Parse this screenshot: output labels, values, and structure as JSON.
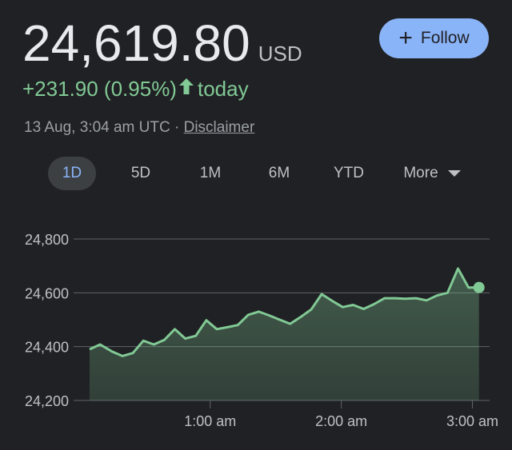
{
  "quote": {
    "price": "24,619.80",
    "currency": "USD",
    "change": "+231.90 (0.95%)",
    "change_period": "today",
    "timestamp": "13 Aug, 3:04 am UTC",
    "separator": "·",
    "disclaimer_label": "Disclaimer",
    "up_color": "#81c995"
  },
  "follow_button": {
    "label": "Follow",
    "icon": "plus-icon"
  },
  "range_tabs": [
    {
      "label": "1D",
      "active": true
    },
    {
      "label": "5D",
      "active": false
    },
    {
      "label": "1M",
      "active": false
    },
    {
      "label": "6M",
      "active": false
    },
    {
      "label": "YTD",
      "active": false
    },
    {
      "label": "More",
      "active": false,
      "icon": "caret-down-icon"
    }
  ],
  "chart_data": {
    "type": "area",
    "title": "",
    "xlabel": "",
    "ylabel": "",
    "y_ticks": [
      "24,800",
      "24,600",
      "24,400",
      "24,200"
    ],
    "y_tick_values": [
      24800,
      24600,
      24400,
      24200
    ],
    "x_ticks": [
      "1:00 am",
      "2:00 am",
      "3:00 am"
    ],
    "x_tick_values": [
      1.0,
      2.0,
      3.0
    ],
    "x_unit": "hours UTC",
    "ylim": [
      24200,
      24800
    ],
    "xlim": [
      0.08,
      3.07
    ],
    "grid": true,
    "line_color": "#81c995",
    "x": [
      0.08,
      0.16,
      0.25,
      0.33,
      0.41,
      0.49,
      0.57,
      0.65,
      0.73,
      0.81,
      0.89,
      0.97,
      1.05,
      1.13,
      1.21,
      1.29,
      1.37,
      1.45,
      1.53,
      1.61,
      1.69,
      1.77,
      1.85,
      1.93,
      2.01,
      2.09,
      2.17,
      2.25,
      2.33,
      2.41,
      2.49,
      2.57,
      2.65,
      2.73,
      2.81,
      2.89,
      2.97,
      3.05
    ],
    "values": [
      24390,
      24408,
      24382,
      24365,
      24376,
      24422,
      24408,
      24425,
      24465,
      24430,
      24440,
      24498,
      24465,
      24472,
      24480,
      24518,
      24530,
      24516,
      24500,
      24485,
      24510,
      24538,
      24595,
      24570,
      24547,
      24555,
      24540,
      24558,
      24580,
      24580,
      24578,
      24580,
      24572,
      24590,
      24600,
      24690,
      24619.8,
      24619.8
    ],
    "last_value": 24619.8
  }
}
